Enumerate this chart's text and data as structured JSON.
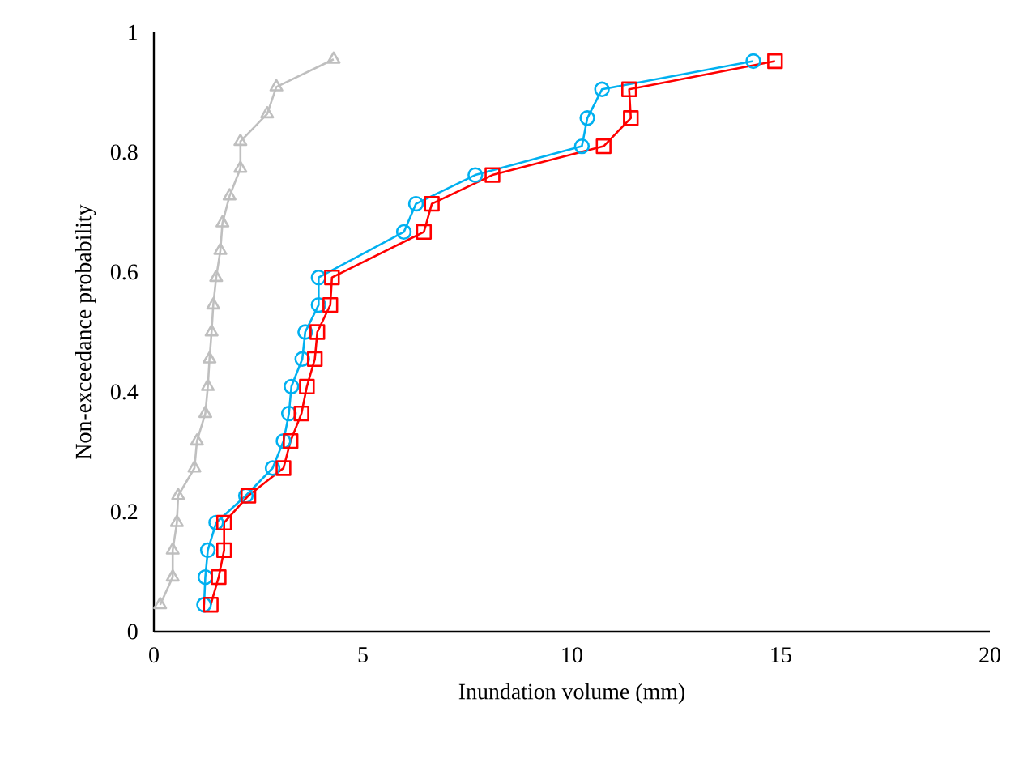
{
  "chart_data": {
    "type": "line",
    "xlabel": "Inundation volume (mm)",
    "ylabel": "Non-exceedance probability",
    "xlim": [
      0,
      20
    ],
    "xticks": [
      0,
      5,
      10,
      15,
      20
    ],
    "ylim": [
      0,
      1
    ],
    "yticks": [
      0,
      0.2,
      0.4,
      0.6,
      0.8,
      1
    ],
    "line_style": "solid",
    "series": [
      {
        "color": "#bfbfbf",
        "marker": "triangle",
        "x": [
          0.15,
          0.45,
          0.45,
          0.55,
          0.58,
          0.97,
          1.03,
          1.23,
          1.29,
          1.33,
          1.38,
          1.42,
          1.49,
          1.59,
          1.64,
          1.81,
          2.07,
          2.07,
          2.71,
          2.93,
          4.3
        ],
        "values": [
          0.045,
          0.091,
          0.136,
          0.182,
          0.227,
          0.273,
          0.318,
          0.364,
          0.409,
          0.455,
          0.5,
          0.545,
          0.591,
          0.636,
          0.682,
          0.727,
          0.773,
          0.818,
          0.864,
          0.909,
          0.955
        ]
      },
      {
        "color": "#00b0f0",
        "marker": "circle",
        "x": [
          1.2,
          1.23,
          1.29,
          1.49,
          2.2,
          2.84,
          3.1,
          3.23,
          3.29,
          3.55,
          3.62,
          3.94,
          3.94,
          5.98,
          6.27,
          7.69,
          10.24,
          10.37,
          10.72,
          14.34
        ],
        "values": [
          0.045,
          0.091,
          0.136,
          0.182,
          0.227,
          0.273,
          0.318,
          0.364,
          0.409,
          0.455,
          0.5,
          0.545,
          0.591,
          0.667,
          0.714,
          0.762,
          0.81,
          0.857,
          0.905,
          0.952
        ]
      },
      {
        "color": "#ff0000",
        "marker": "square",
        "x": [
          1.36,
          1.55,
          1.68,
          1.68,
          2.26,
          3.1,
          3.27,
          3.53,
          3.66,
          3.85,
          3.91,
          4.22,
          4.26,
          6.46,
          6.65,
          8.1,
          10.76,
          11.41,
          11.37,
          14.86
        ],
        "values": [
          0.045,
          0.091,
          0.136,
          0.182,
          0.227,
          0.273,
          0.318,
          0.364,
          0.409,
          0.455,
          0.5,
          0.545,
          0.591,
          0.667,
          0.714,
          0.762,
          0.81,
          0.857,
          0.905,
          0.952
        ]
      }
    ]
  }
}
